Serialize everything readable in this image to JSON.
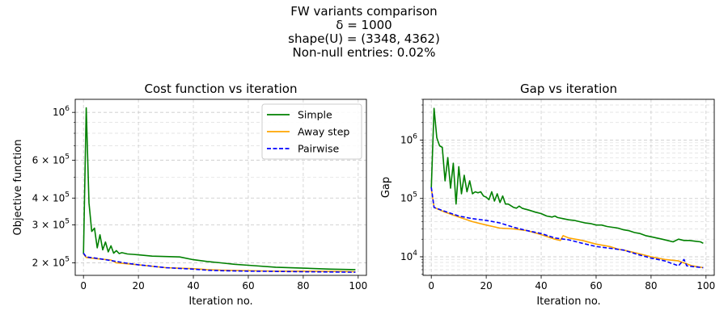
{
  "figure": {
    "suptitle_lines": [
      "FW variants comparison",
      "δ = 1000",
      "shape(U) = (3348, 4362)",
      "Non-null entries: 0.02%"
    ]
  },
  "chart_data": [
    {
      "type": "line",
      "title": "Cost function vs iteration",
      "xlabel": "Iteration no.",
      "ylabel": "Objective function",
      "yscale": "log",
      "xlim": [
        -3,
        103
      ],
      "ylim": [
        175000,
        1150000
      ],
      "xticks": [
        0,
        20,
        40,
        60,
        80,
        100
      ],
      "yticks": [
        {
          "value": 1000000,
          "mant": "10",
          "exp": "6"
        },
        {
          "value": 600000,
          "mant": "6 × 10",
          "exp": "5"
        },
        {
          "value": 400000,
          "mant": "4 × 10",
          "exp": "5"
        },
        {
          "value": 300000,
          "mant": "3 × 10",
          "exp": "5"
        },
        {
          "value": 200000,
          "mant": "2 × 10",
          "exp": "5"
        }
      ],
      "grid": true,
      "legend_position": "upper-right",
      "series": [
        {
          "name": "Simple",
          "color": "#008000",
          "style": "solid",
          "points": [
            [
              0,
              220000
            ],
            [
              1,
              1050000
            ],
            [
              2,
              380000
            ],
            [
              3,
              280000
            ],
            [
              4,
              290000
            ],
            [
              5,
              235000
            ],
            [
              6,
              270000
            ],
            [
              7,
              230000
            ],
            [
              8,
              250000
            ],
            [
              9,
              225000
            ],
            [
              10,
              240000
            ],
            [
              11,
              222000
            ],
            [
              12,
              228000
            ],
            [
              13,
              221000
            ],
            [
              14,
              223000
            ],
            [
              16,
              220000
            ],
            [
              18,
              219000
            ],
            [
              20,
              218000
            ],
            [
              25,
              215000
            ],
            [
              30,
              214000
            ],
            [
              35,
              213000
            ],
            [
              40,
              207000
            ],
            [
              45,
              203000
            ],
            [
              50,
              200000
            ],
            [
              55,
              197000
            ],
            [
              60,
              195000
            ],
            [
              70,
              191000
            ],
            [
              80,
              189000
            ],
            [
              90,
              187000
            ],
            [
              99,
              186000
            ]
          ]
        },
        {
          "name": "Away step",
          "color": "#ffa500",
          "style": "solid",
          "points": [
            [
              0,
              220000
            ],
            [
              1,
              212000
            ],
            [
              5,
              209000
            ],
            [
              10,
              206000
            ],
            [
              12,
              200000
            ],
            [
              20,
              196000
            ],
            [
              30,
              190000
            ],
            [
              40,
              188000
            ],
            [
              45,
              186000
            ],
            [
              50,
              185000
            ],
            [
              60,
              184000
            ],
            [
              70,
              183000
            ],
            [
              80,
              183000
            ],
            [
              90,
              182500
            ],
            [
              99,
              182000
            ]
          ]
        },
        {
          "name": "Pairwise",
          "color": "#0000ff",
          "style": "dashed",
          "points": [
            [
              0,
              222000
            ],
            [
              1,
              213000
            ],
            [
              5,
              210000
            ],
            [
              10,
              205000
            ],
            [
              15,
              200000
            ],
            [
              20,
              196000
            ],
            [
              25,
              193000
            ],
            [
              30,
              190000
            ],
            [
              40,
              187000
            ],
            [
              45,
              185000
            ],
            [
              50,
              184000
            ],
            [
              60,
              183000
            ],
            [
              70,
              182500
            ],
            [
              80,
              182000
            ],
            [
              90,
              181500
            ],
            [
              99,
              181000
            ]
          ]
        }
      ]
    },
    {
      "type": "line",
      "title": "Gap vs iteration",
      "xlabel": "Iteration no.",
      "ylabel": "Gap",
      "yscale": "log",
      "xlim": [
        -3,
        103
      ],
      "ylim": [
        4800,
        5000000
      ],
      "xticks": [
        0,
        20,
        40,
        60,
        80,
        100
      ],
      "yticks": [
        {
          "value": 1000000,
          "mant": "10",
          "exp": "6"
        },
        {
          "value": 100000,
          "mant": "10",
          "exp": "5"
        },
        {
          "value": 10000,
          "mant": "10",
          "exp": "4"
        }
      ],
      "grid": true,
      "series": [
        {
          "name": "Simple",
          "color": "#008000",
          "style": "solid",
          "points": [
            [
              0,
              150000
            ],
            [
              1,
              3500000
            ],
            [
              2,
              1100000
            ],
            [
              3,
              800000
            ],
            [
              4,
              750000
            ],
            [
              5,
              200000
            ],
            [
              6,
              500000
            ],
            [
              7,
              150000
            ],
            [
              8,
              400000
            ],
            [
              9,
              80000
            ],
            [
              10,
              350000
            ],
            [
              11,
              120000
            ],
            [
              12,
              250000
            ],
            [
              13,
              130000
            ],
            [
              14,
              200000
            ],
            [
              15,
              120000
            ],
            [
              16,
              130000
            ],
            [
              17,
              125000
            ],
            [
              18,
              130000
            ],
            [
              19,
              110000
            ],
            [
              20,
              105000
            ],
            [
              21,
              95000
            ],
            [
              22,
              130000
            ],
            [
              23,
              90000
            ],
            [
              24,
              120000
            ],
            [
              25,
              85000
            ],
            [
              26,
              110000
            ],
            [
              27,
              80000
            ],
            [
              28,
              80000
            ],
            [
              29,
              75000
            ],
            [
              30,
              70000
            ],
            [
              31,
              68000
            ],
            [
              32,
              74000
            ],
            [
              33,
              68000
            ],
            [
              34,
              66000
            ],
            [
              35,
              64000
            ],
            [
              36,
              62000
            ],
            [
              38,
              58000
            ],
            [
              40,
              55000
            ],
            [
              42,
              50000
            ],
            [
              44,
              48000
            ],
            [
              45,
              50000
            ],
            [
              46,
              47000
            ],
            [
              48,
              45000
            ],
            [
              50,
              43000
            ],
            [
              52,
              42000
            ],
            [
              54,
              40000
            ],
            [
              56,
              38000
            ],
            [
              58,
              37000
            ],
            [
              60,
              35000
            ],
            [
              62,
              35000
            ],
            [
              64,
              33000
            ],
            [
              66,
              32000
            ],
            [
              68,
              31000
            ],
            [
              70,
              29000
            ],
            [
              72,
              28000
            ],
            [
              74,
              26000
            ],
            [
              76,
              25000
            ],
            [
              78,
              23000
            ],
            [
              80,
              22000
            ],
            [
              82,
              21000
            ],
            [
              84,
              20000
            ],
            [
              86,
              19000
            ],
            [
              88,
              18000
            ],
            [
              90,
              20000
            ],
            [
              92,
              19000
            ],
            [
              94,
              19000
            ],
            [
              96,
              18500
            ],
            [
              98,
              18000
            ],
            [
              99,
              17000
            ]
          ]
        },
        {
          "name": "Away step",
          "color": "#ffa500",
          "style": "solid",
          "points": [
            [
              0,
              150000
            ],
            [
              1,
              70000
            ],
            [
              5,
              58000
            ],
            [
              10,
              48000
            ],
            [
              15,
              40000
            ],
            [
              20,
              35000
            ],
            [
              25,
              31000
            ],
            [
              30,
              30000
            ],
            [
              35,
              28000
            ],
            [
              40,
              24000
            ],
            [
              45,
              20000
            ],
            [
              47,
              19000
            ],
            [
              48,
              23000
            ],
            [
              50,
              21000
            ],
            [
              55,
              19000
            ],
            [
              60,
              16500
            ],
            [
              65,
              15000
            ],
            [
              68,
              13500
            ],
            [
              70,
              13000
            ],
            [
              75,
              11500
            ],
            [
              80,
              10000
            ],
            [
              85,
              9000
            ],
            [
              90,
              8500
            ],
            [
              95,
              7000
            ],
            [
              99,
              6500
            ]
          ]
        },
        {
          "name": "Pairwise",
          "color": "#0000ff",
          "style": "dashed",
          "points": [
            [
              0,
              155000
            ],
            [
              1,
              70000
            ],
            [
              5,
              60000
            ],
            [
              10,
              50000
            ],
            [
              15,
              45000
            ],
            [
              20,
              42000
            ],
            [
              25,
              38000
            ],
            [
              30,
              32000
            ],
            [
              35,
              28000
            ],
            [
              40,
              25000
            ],
            [
              45,
              21000
            ],
            [
              50,
              19500
            ],
            [
              55,
              17000
            ],
            [
              60,
              15000
            ],
            [
              65,
              14000
            ],
            [
              70,
              13000
            ],
            [
              75,
              11000
            ],
            [
              80,
              9500
            ],
            [
              85,
              8500
            ],
            [
              90,
              7000
            ],
            [
              92,
              9000
            ],
            [
              93,
              7000
            ],
            [
              95,
              6800
            ],
            [
              99,
              6500
            ]
          ]
        }
      ]
    }
  ]
}
